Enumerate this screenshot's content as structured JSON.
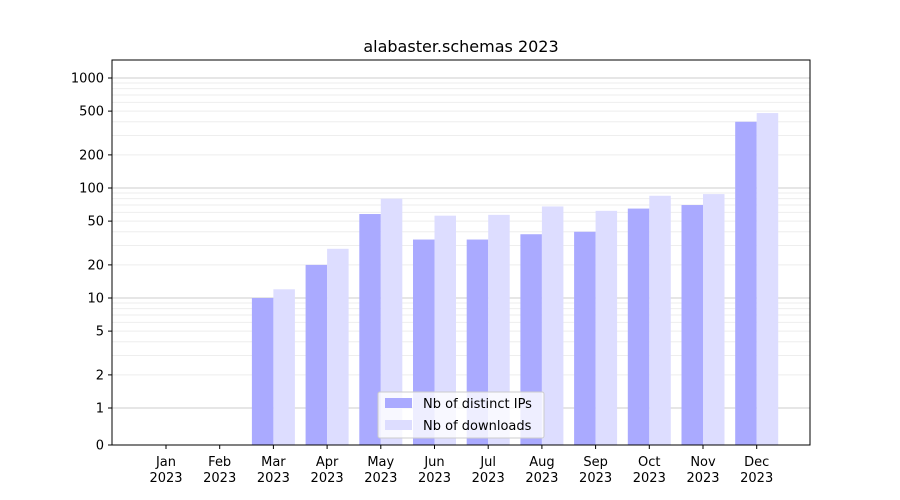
{
  "chart_data": {
    "type": "bar",
    "title": "alabaster.schemas 2023",
    "xlabel": "",
    "ylabel": "",
    "scale": "symlog",
    "categories": [
      [
        "Jan",
        "2023"
      ],
      [
        "Feb",
        "2023"
      ],
      [
        "Mar",
        "2023"
      ],
      [
        "Apr",
        "2023"
      ],
      [
        "May",
        "2023"
      ],
      [
        "Jun",
        "2023"
      ],
      [
        "Jul",
        "2023"
      ],
      [
        "Aug",
        "2023"
      ],
      [
        "Sep",
        "2023"
      ],
      [
        "Oct",
        "2023"
      ],
      [
        "Nov",
        "2023"
      ],
      [
        "Dec",
        "2023"
      ]
    ],
    "y_ticks": [
      0,
      1,
      2,
      5,
      10,
      20,
      50,
      100,
      200,
      500,
      1000
    ],
    "ylim": [
      0,
      1400
    ],
    "grid": true,
    "legend_position": "bottom-center",
    "series": [
      {
        "name": "Nb of distinct IPs",
        "color": "#aaaaff",
        "values": [
          0,
          0,
          10,
          20,
          58,
          34,
          34,
          38,
          40,
          65,
          70,
          400
        ]
      },
      {
        "name": "Nb of downloads",
        "color": "#ddddff",
        "values": [
          0,
          0,
          12,
          28,
          80,
          56,
          57,
          68,
          62,
          85,
          88,
          480
        ]
      }
    ]
  }
}
